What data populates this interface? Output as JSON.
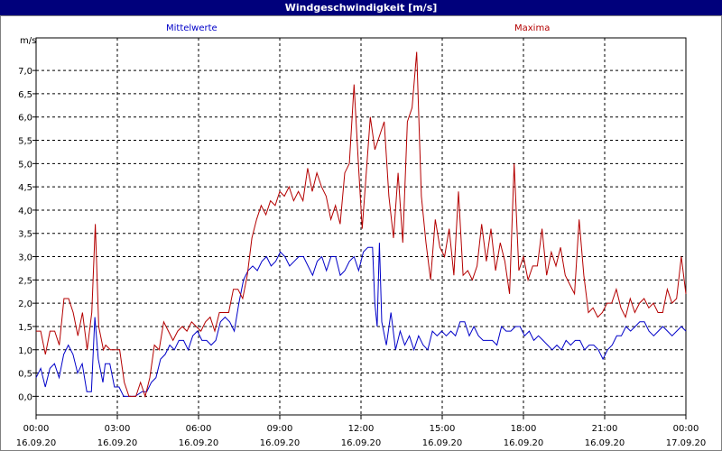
{
  "title": "Windgeschwindigkeit [m/s]",
  "chart_data": {
    "type": "line",
    "title": "Windgeschwindigkeit [m/s]",
    "ylabel": "m/s",
    "ylim": [
      -0.4,
      7.7
    ],
    "yticks": [
      "0,0",
      "0,5",
      "1,0",
      "1,5",
      "2,0",
      "2,5",
      "3,0",
      "3,5",
      "4,0",
      "4,5",
      "5,0",
      "5,5",
      "6,0",
      "6,5",
      "7,0"
    ],
    "xticks": [
      {
        "time": "00:00",
        "date": "16.09.20"
      },
      {
        "time": "03:00",
        "date": "16.09.20"
      },
      {
        "time": "06:00",
        "date": "16.09.20"
      },
      {
        "time": "09:00",
        "date": "16.09.20"
      },
      {
        "time": "12:00",
        "date": "16.09.20"
      },
      {
        "time": "15:00",
        "date": "16.09.20"
      },
      {
        "time": "18:00",
        "date": "16.09.20"
      },
      {
        "time": "21:00",
        "date": "16.09.20"
      },
      {
        "time": "00:00",
        "date": "17.09.20"
      }
    ],
    "xlim_hours": [
      0,
      24
    ],
    "grid": true,
    "series": [
      {
        "name": "Mittelwerte",
        "color": "#0000c8",
        "points": [
          [
            0.0,
            0.4
          ],
          [
            0.2,
            0.6
          ],
          [
            0.4,
            0.2
          ],
          [
            0.6,
            0.6
          ],
          [
            0.8,
            0.7
          ],
          [
            1.0,
            0.4
          ],
          [
            1.2,
            0.9
          ],
          [
            1.4,
            1.1
          ],
          [
            1.6,
            0.9
          ],
          [
            1.8,
            0.5
          ],
          [
            2.0,
            0.7
          ],
          [
            2.2,
            0.1
          ],
          [
            2.4,
            0.1
          ],
          [
            2.55,
            1.7
          ],
          [
            2.7,
            0.8
          ],
          [
            2.9,
            0.3
          ],
          [
            3.0,
            0.7
          ],
          [
            3.2,
            0.7
          ],
          [
            3.4,
            0.2
          ],
          [
            3.6,
            0.2
          ],
          [
            3.8,
            0.0
          ],
          [
            4.0,
            0.0
          ],
          [
            4.3,
            0.0
          ],
          [
            4.6,
            0.1
          ],
          [
            4.8,
            0.1
          ],
          [
            5.0,
            0.3
          ],
          [
            5.2,
            0.4
          ],
          [
            5.4,
            0.8
          ],
          [
            5.6,
            0.9
          ],
          [
            5.8,
            1.1
          ],
          [
            6.0,
            1.0
          ],
          [
            6.2,
            1.2
          ],
          [
            6.4,
            1.2
          ],
          [
            6.6,
            1.0
          ],
          [
            6.8,
            1.3
          ],
          [
            7.0,
            1.4
          ],
          [
            7.2,
            1.2
          ],
          [
            7.4,
            1.2
          ],
          [
            7.6,
            1.1
          ],
          [
            7.8,
            1.2
          ],
          [
            8.0,
            1.6
          ],
          [
            8.2,
            1.7
          ],
          [
            8.4,
            1.6
          ],
          [
            8.6,
            1.4
          ],
          [
            8.8,
            2.0
          ],
          [
            9.0,
            2.5
          ],
          [
            9.2,
            2.7
          ],
          [
            9.4,
            2.8
          ],
          [
            9.6,
            2.7
          ],
          [
            9.8,
            2.9
          ],
          [
            10.0,
            3.0
          ],
          [
            10.2,
            2.8
          ],
          [
            10.4,
            2.9
          ],
          [
            10.6,
            3.1
          ],
          [
            10.8,
            3.0
          ],
          [
            11.0,
            2.8
          ],
          [
            11.2,
            2.9
          ],
          [
            11.4,
            3.0
          ],
          [
            11.6,
            3.0
          ],
          [
            11.8,
            2.8
          ],
          [
            12.0,
            2.6
          ],
          [
            12.2,
            2.9
          ],
          [
            12.4,
            3.0
          ],
          [
            12.6,
            2.7
          ],
          [
            12.8,
            3.0
          ],
          [
            13.0,
            3.0
          ],
          [
            13.2,
            2.6
          ],
          [
            13.4,
            2.7
          ],
          [
            13.6,
            2.9
          ],
          [
            13.8,
            3.0
          ],
          [
            14.0,
            2.7
          ],
          [
            14.2,
            3.1
          ],
          [
            14.4,
            3.2
          ],
          [
            14.6,
            3.2
          ],
          [
            14.7,
            2.0
          ],
          [
            14.8,
            1.5
          ],
          [
            14.9,
            3.3
          ],
          [
            15.0,
            1.6
          ],
          [
            15.2,
            1.1
          ],
          [
            15.4,
            1.8
          ],
          [
            15.6,
            1.0
          ],
          [
            15.8,
            1.4
          ],
          [
            16.0,
            1.1
          ],
          [
            16.2,
            1.3
          ],
          [
            16.4,
            1.0
          ],
          [
            16.6,
            1.3
          ],
          [
            16.8,
            1.1
          ],
          [
            17.0,
            1.0
          ],
          [
            17.2,
            1.4
          ],
          [
            17.4,
            1.3
          ],
          [
            17.6,
            1.4
          ],
          [
            17.8,
            1.3
          ],
          [
            18.0,
            1.4
          ],
          [
            18.2,
            1.3
          ],
          [
            18.4,
            1.6
          ],
          [
            18.6,
            1.6
          ],
          [
            18.8,
            1.3
          ],
          [
            19.0,
            1.5
          ],
          [
            19.2,
            1.3
          ],
          [
            19.4,
            1.2
          ],
          [
            19.6,
            1.2
          ],
          [
            19.8,
            1.2
          ],
          [
            20.0,
            1.1
          ],
          [
            20.2,
            1.5
          ],
          [
            20.4,
            1.4
          ],
          [
            20.6,
            1.4
          ],
          [
            20.8,
            1.5
          ],
          [
            21.0,
            1.5
          ],
          [
            21.2,
            1.3
          ],
          [
            21.4,
            1.4
          ],
          [
            21.6,
            1.2
          ],
          [
            21.8,
            1.3
          ],
          [
            22.0,
            1.2
          ],
          [
            22.2,
            1.1
          ],
          [
            22.4,
            1.0
          ],
          [
            22.6,
            1.1
          ],
          [
            22.8,
            1.0
          ],
          [
            23.0,
            1.2
          ],
          [
            23.2,
            1.1
          ],
          [
            23.4,
            1.2
          ],
          [
            23.6,
            1.2
          ],
          [
            23.8,
            1.0
          ],
          [
            24.0,
            1.1
          ],
          [
            24.2,
            1.1
          ],
          [
            24.4,
            1.0
          ],
          [
            24.6,
            0.8
          ],
          [
            24.8,
            1.0
          ],
          [
            25.0,
            1.1
          ],
          [
            25.2,
            1.3
          ],
          [
            25.4,
            1.3
          ],
          [
            25.6,
            1.5
          ],
          [
            25.8,
            1.4
          ],
          [
            26.0,
            1.5
          ],
          [
            26.2,
            1.6
          ],
          [
            26.4,
            1.6
          ],
          [
            26.6,
            1.4
          ],
          [
            26.8,
            1.3
          ],
          [
            27.0,
            1.4
          ],
          [
            27.2,
            1.5
          ],
          [
            27.4,
            1.4
          ],
          [
            27.6,
            1.3
          ],
          [
            27.8,
            1.4
          ],
          [
            28.0,
            1.5
          ],
          [
            28.2,
            1.4
          ]
        ]
      },
      {
        "name": "Maxima",
        "color": "#b40000",
        "points": [
          [
            0.0,
            1.4
          ],
          [
            0.2,
            1.4
          ],
          [
            0.4,
            0.9
          ],
          [
            0.6,
            1.4
          ],
          [
            0.8,
            1.4
          ],
          [
            1.0,
            1.1
          ],
          [
            1.2,
            2.1
          ],
          [
            1.4,
            2.1
          ],
          [
            1.6,
            1.8
          ],
          [
            1.8,
            1.3
          ],
          [
            2.0,
            1.8
          ],
          [
            2.2,
            1.0
          ],
          [
            2.4,
            1.8
          ],
          [
            2.55,
            3.7
          ],
          [
            2.7,
            1.5
          ],
          [
            2.9,
            1.0
          ],
          [
            3.0,
            1.1
          ],
          [
            3.2,
            1.0
          ],
          [
            3.4,
            1.0
          ],
          [
            3.6,
            1.0
          ],
          [
            3.8,
            0.3
          ],
          [
            4.0,
            0.0
          ],
          [
            4.3,
            0.0
          ],
          [
            4.5,
            0.3
          ],
          [
            4.7,
            0.0
          ],
          [
            4.9,
            0.4
          ],
          [
            5.1,
            1.1
          ],
          [
            5.3,
            1.0
          ],
          [
            5.5,
            1.6
          ],
          [
            5.7,
            1.4
          ],
          [
            5.9,
            1.2
          ],
          [
            6.1,
            1.4
          ],
          [
            6.3,
            1.5
          ],
          [
            6.5,
            1.4
          ],
          [
            6.7,
            1.6
          ],
          [
            6.9,
            1.5
          ],
          [
            7.1,
            1.4
          ],
          [
            7.3,
            1.6
          ],
          [
            7.5,
            1.7
          ],
          [
            7.7,
            1.4
          ],
          [
            7.9,
            1.8
          ],
          [
            8.1,
            1.8
          ],
          [
            8.3,
            1.8
          ],
          [
            8.5,
            2.3
          ],
          [
            8.7,
            2.3
          ],
          [
            8.9,
            2.1
          ],
          [
            9.1,
            2.6
          ],
          [
            9.3,
            3.4
          ],
          [
            9.5,
            3.8
          ],
          [
            9.7,
            4.1
          ],
          [
            9.9,
            3.9
          ],
          [
            10.1,
            4.2
          ],
          [
            10.3,
            4.1
          ],
          [
            10.5,
            4.4
          ],
          [
            10.7,
            4.3
          ],
          [
            10.9,
            4.5
          ],
          [
            11.1,
            4.2
          ],
          [
            11.3,
            4.4
          ],
          [
            11.5,
            4.2
          ],
          [
            11.7,
            4.9
          ],
          [
            11.9,
            4.4
          ],
          [
            12.1,
            4.8
          ],
          [
            12.3,
            4.5
          ],
          [
            12.5,
            4.3
          ],
          [
            12.7,
            3.8
          ],
          [
            12.9,
            4.1
          ],
          [
            13.1,
            3.7
          ],
          [
            13.3,
            4.8
          ],
          [
            13.5,
            5.0
          ],
          [
            13.7,
            6.7
          ],
          [
            13.9,
            4.9
          ],
          [
            14.05,
            3.6
          ],
          [
            14.2,
            4.6
          ],
          [
            14.4,
            6.0
          ],
          [
            14.6,
            5.3
          ],
          [
            14.8,
            5.6
          ],
          [
            15.0,
            5.9
          ],
          [
            15.2,
            4.3
          ],
          [
            15.4,
            3.4
          ],
          [
            15.6,
            4.8
          ],
          [
            15.8,
            3.3
          ],
          [
            16.0,
            5.9
          ],
          [
            16.2,
            6.2
          ],
          [
            16.4,
            7.4
          ],
          [
            16.6,
            4.3
          ],
          [
            16.8,
            3.3
          ],
          [
            17.0,
            2.5
          ],
          [
            17.2,
            3.8
          ],
          [
            17.4,
            3.2
          ],
          [
            17.6,
            3.0
          ],
          [
            17.8,
            3.6
          ],
          [
            18.0,
            2.6
          ],
          [
            18.2,
            4.4
          ],
          [
            18.4,
            2.6
          ],
          [
            18.6,
            2.7
          ],
          [
            18.8,
            2.5
          ],
          [
            19.0,
            2.8
          ],
          [
            19.2,
            3.7
          ],
          [
            19.4,
            2.9
          ],
          [
            19.6,
            3.6
          ],
          [
            19.8,
            2.7
          ],
          [
            20.0,
            3.3
          ],
          [
            20.2,
            2.9
          ],
          [
            20.4,
            2.2
          ],
          [
            20.6,
            5.0
          ],
          [
            20.8,
            2.7
          ],
          [
            21.0,
            3.0
          ],
          [
            21.2,
            2.5
          ],
          [
            21.4,
            2.8
          ],
          [
            21.6,
            2.8
          ],
          [
            21.8,
            3.6
          ],
          [
            22.0,
            2.6
          ],
          [
            22.2,
            3.1
          ],
          [
            22.4,
            2.8
          ],
          [
            22.6,
            3.2
          ],
          [
            22.8,
            2.6
          ],
          [
            23.0,
            2.4
          ],
          [
            23.2,
            2.2
          ],
          [
            23.4,
            3.8
          ],
          [
            23.6,
            2.6
          ],
          [
            23.8,
            1.8
          ],
          [
            24.0,
            1.9
          ],
          [
            24.2,
            1.7
          ],
          [
            24.4,
            1.8
          ],
          [
            24.6,
            2.0
          ],
          [
            24.8,
            2.0
          ],
          [
            25.0,
            2.3
          ],
          [
            25.2,
            1.9
          ],
          [
            25.4,
            1.7
          ],
          [
            25.6,
            2.1
          ],
          [
            25.8,
            1.8
          ],
          [
            26.0,
            2.0
          ],
          [
            26.2,
            2.1
          ],
          [
            26.4,
            1.9
          ],
          [
            26.6,
            2.0
          ],
          [
            26.8,
            1.8
          ],
          [
            27.0,
            1.8
          ],
          [
            27.2,
            2.3
          ],
          [
            27.4,
            2.0
          ],
          [
            27.6,
            2.1
          ],
          [
            27.8,
            3.0
          ],
          [
            28.0,
            2.2
          ]
        ]
      }
    ]
  }
}
